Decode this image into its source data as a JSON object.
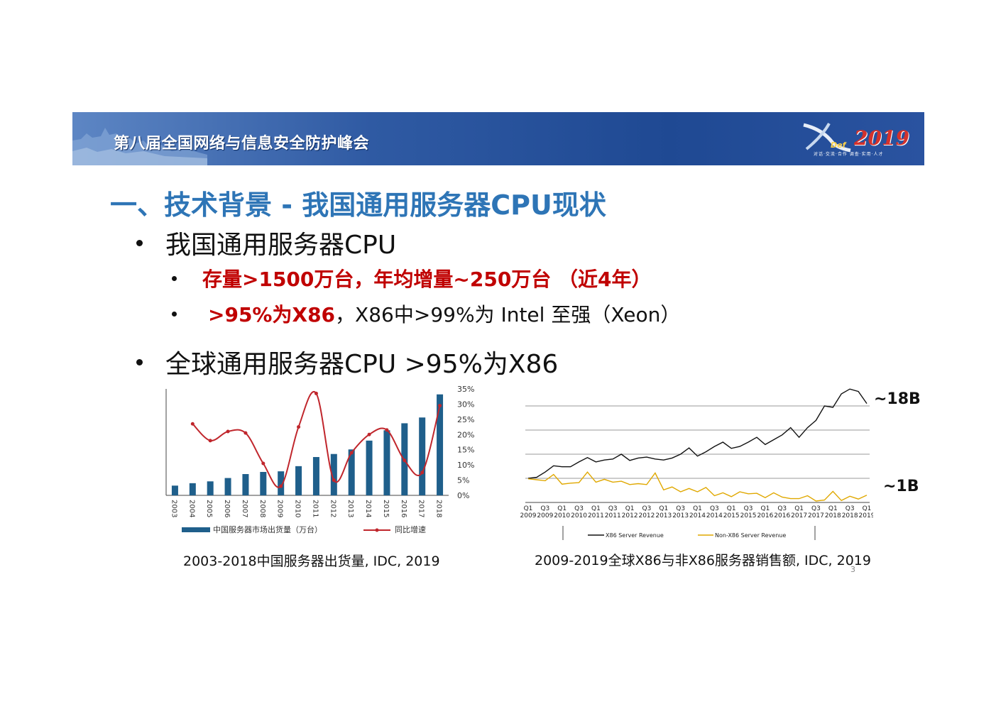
{
  "banner": {
    "title": "第八届全国网络与信息安全防护峰会",
    "logo_text": "2019",
    "logo_sub": "对话·交流·合作   调查·实用·人才"
  },
  "heading": "一、技术背景 - 我国通用服务器CPU现状",
  "bullets": {
    "b1": "我国通用服务器CPU",
    "b2": "存量>1500万台，年均增量~250万台 （近4年）",
    "b3_red": ">95%为X86",
    "b3_rest": "，X86中>99%为 Intel 至强（Xeon）",
    "b4": "全球通用服务器CPU >95%为X86"
  },
  "captions": {
    "c1": "2003-2018中国服务器出货量, IDC, 2019",
    "c2": "2009-2019全球X86与非X86服务器销售额, IDC, 2019"
  },
  "page_number": "3",
  "annotations": {
    "high": "~18B",
    "low": "~1B"
  },
  "chart_data": [
    {
      "type": "bar",
      "title": "",
      "categories": [
        "2003",
        "2004",
        "2005",
        "2006",
        "2007",
        "2008",
        "2009",
        "2010",
        "2011",
        "2012",
        "2013",
        "2014",
        "2015",
        "2016",
        "2017",
        "2018"
      ],
      "series": [
        {
          "name": "中国服务器市场出货量（万台）",
          "values": [
            32,
            40,
            46,
            57,
            70,
            77,
            79,
            96,
            126,
            136,
            151,
            180,
            214,
            237,
            256,
            332
          ],
          "color": "#1f5f8b"
        },
        {
          "name": "同比增速",
          "axis": "right",
          "values": [
            null,
            23.5,
            18,
            21,
            20.5,
            10.5,
            3,
            22.5,
            33.5,
            5,
            14,
            20,
            21.5,
            11.5,
            7.5,
            29.5
          ],
          "color": "#c0262c"
        }
      ],
      "y2_ticks": [
        "0%",
        "5%",
        "10%",
        "15%",
        "20%",
        "25%",
        "30%",
        "35%"
      ],
      "y2lim": [
        0,
        35
      ],
      "ylim": [
        0,
        350
      ]
    },
    {
      "type": "line",
      "title": "",
      "x_ticks": [
        [
          "Q1",
          "2009"
        ],
        [
          "Q3",
          "2009"
        ],
        [
          "Q1",
          "2010"
        ],
        [
          "Q3",
          "2010"
        ],
        [
          "Q1",
          "2011"
        ],
        [
          "Q3",
          "2011"
        ],
        [
          "Q1",
          "2012"
        ],
        [
          "Q3",
          "2012"
        ],
        [
          "Q1",
          "2013"
        ],
        [
          "Q3",
          "2013"
        ],
        [
          "Q1",
          "2014"
        ],
        [
          "Q3",
          "2014"
        ],
        [
          "Q1",
          "2015"
        ],
        [
          "Q3",
          "2015"
        ],
        [
          "Q1",
          "2016"
        ],
        [
          "Q3",
          "2016"
        ],
        [
          "Q1",
          "2017"
        ],
        [
          "Q3",
          "2017"
        ],
        [
          "Q1",
          "2018"
        ],
        [
          "Q3",
          "2018"
        ],
        [
          "Q1",
          "2019"
        ]
      ],
      "series": [
        {
          "name": "X86 Server Revenue",
          "color": "#111111",
          "values": [
            5.0,
            5.2,
            6.3,
            7.6,
            7.4,
            7.4,
            8.4,
            9.3,
            8.4,
            8.8,
            9.0,
            10.0,
            8.7,
            9.2,
            9.4,
            9.0,
            8.8,
            9.2,
            10.0,
            11.3,
            9.6,
            10.5,
            11.6,
            12.5,
            11.2,
            11.6,
            12.5,
            13.5,
            12.0,
            13.0,
            14.0,
            15.5,
            13.5,
            15.5,
            17.0,
            20.0,
            19.7,
            22.5,
            23.5,
            23.0,
            20.5
          ]
        },
        {
          "name": "Non-X86 Server Revenue",
          "color": "#e0a800",
          "values": [
            4.9,
            4.7,
            4.5,
            5.8,
            3.8,
            4.0,
            4.1,
            6.3,
            4.2,
            4.8,
            4.2,
            4.4,
            3.7,
            3.9,
            3.7,
            6.1,
            2.6,
            3.2,
            2.2,
            2.9,
            2.2,
            3.1,
            1.4,
            2.0,
            1.2,
            2.2,
            1.8,
            1.9,
            1.0,
            2.0,
            1.1,
            0.8,
            0.8,
            1.4,
            0.3,
            0.5,
            2.3,
            0.4,
            1.3,
            0.7,
            1.5
          ]
        }
      ],
      "ylim": [
        0,
        25
      ]
    }
  ]
}
